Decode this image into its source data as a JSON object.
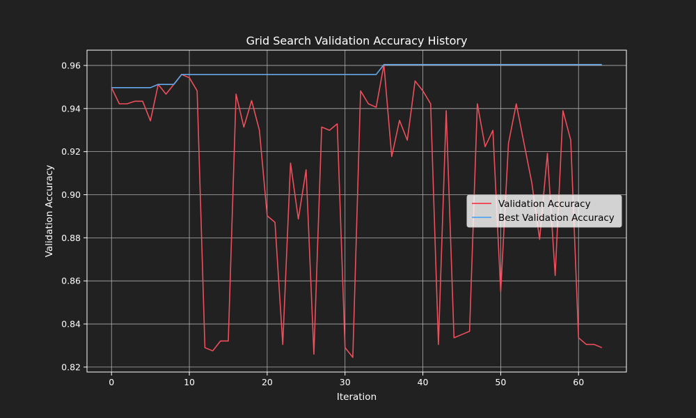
{
  "chart_data": {
    "type": "line",
    "title": "Grid Search Validation Accuracy History",
    "xlabel": "Iteration",
    "ylabel": "Validation Accuracy",
    "xlim": [
      -3.15,
      66.15
    ],
    "ylim": [
      0.8177,
      0.9671
    ],
    "xticks": [
      0,
      10,
      20,
      30,
      40,
      50,
      60
    ],
    "yticks": [
      0.82,
      0.84,
      0.86,
      0.88,
      0.9,
      0.92,
      0.94,
      0.96
    ],
    "ytick_decimals": 2,
    "grid": true,
    "legend_position": "center-right",
    "series": [
      {
        "name": "Validation Accuracy",
        "color": "#ef4f5c",
        "values": [
          0.9497,
          0.9422,
          0.9422,
          0.9434,
          0.9434,
          0.9343,
          0.9512,
          0.9467,
          0.9512,
          0.9558,
          0.9543,
          0.9482,
          0.829,
          0.8275,
          0.8321,
          0.8321,
          0.9467,
          0.9314,
          0.9437,
          0.9299,
          0.8902,
          0.8872,
          0.8305,
          0.9147,
          0.8887,
          0.9116,
          0.826,
          0.9314,
          0.9299,
          0.9329,
          0.829,
          0.8245,
          0.9482,
          0.9422,
          0.9406,
          0.9604,
          0.9177,
          0.9345,
          0.9253,
          0.9528,
          0.9482,
          0.9422,
          0.8305,
          0.939,
          0.8336,
          0.8351,
          0.8366,
          0.9422,
          0.9223,
          0.9299,
          0.8549,
          0.9238,
          0.9422,
          0.9238,
          0.9055,
          0.8793,
          0.9192,
          0.8625,
          0.939,
          0.9253,
          0.8336,
          0.8305,
          0.8305,
          0.829
        ]
      },
      {
        "name": "Best Validation Accuracy",
        "color": "#64aaec",
        "values": [
          0.9497,
          0.9497,
          0.9497,
          0.9497,
          0.9497,
          0.9497,
          0.9512,
          0.9512,
          0.9512,
          0.9558,
          0.9558,
          0.9558,
          0.9558,
          0.9558,
          0.9558,
          0.9558,
          0.9558,
          0.9558,
          0.9558,
          0.9558,
          0.9558,
          0.9558,
          0.9558,
          0.9558,
          0.9558,
          0.9558,
          0.9558,
          0.9558,
          0.9558,
          0.9558,
          0.9558,
          0.9558,
          0.9558,
          0.9558,
          0.9558,
          0.9604,
          0.9604,
          0.9604,
          0.9604,
          0.9604,
          0.9604,
          0.9604,
          0.9604,
          0.9604,
          0.9604,
          0.9604,
          0.9604,
          0.9604,
          0.9604,
          0.9604,
          0.9604,
          0.9604,
          0.9604,
          0.9604,
          0.9604,
          0.9604,
          0.9604,
          0.9604,
          0.9604,
          0.9604,
          0.9604,
          0.9604,
          0.9604,
          0.9604
        ]
      }
    ]
  }
}
